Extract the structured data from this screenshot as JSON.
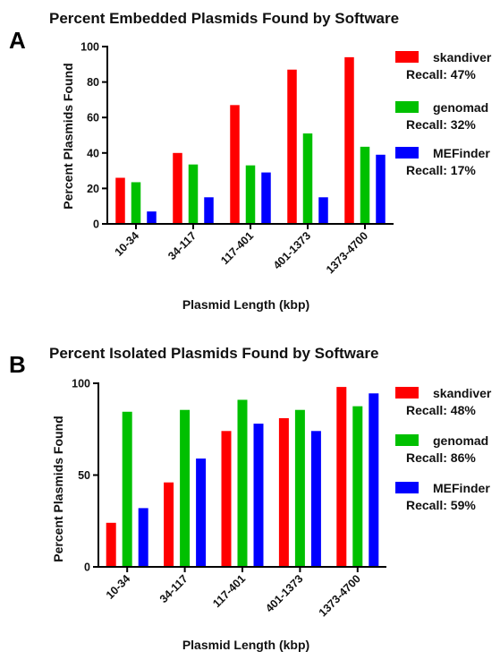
{
  "colors": {
    "skandiver": "#ff0000",
    "genomad": "#00c000",
    "MEFinder": "#0000ff"
  },
  "chart_data": [
    {
      "panel": "A",
      "type": "bar",
      "title": "Percent Embedded Plasmids Found by Software",
      "xlabel": "Plasmid Length (kbp)",
      "ylabel": "Percent Plasmids Found",
      "ylim": [
        0,
        100
      ],
      "yticks": [
        "0",
        "20",
        "40",
        "60",
        "80",
        "100"
      ],
      "categories": [
        "10-34",
        "34-117",
        "117-401",
        "401-1373",
        "1373-4700"
      ],
      "series": [
        {
          "name": "skandiver",
          "recall": "Recall: 47%",
          "values": [
            26,
            40,
            67,
            87,
            94
          ]
        },
        {
          "name": "genomad",
          "recall": "Recall: 32%",
          "values": [
            23.5,
            33.5,
            33,
            51,
            43.5
          ]
        },
        {
          "name": "MEFinder",
          "recall": "Recall: 17%",
          "values": [
            7,
            15,
            29,
            15,
            39
          ]
        }
      ],
      "legend": "right",
      "grid": false
    },
    {
      "panel": "B",
      "type": "bar",
      "title": "Percent Isolated Plasmids Found by Software",
      "xlabel": "Plasmid Length (kbp)",
      "ylabel": "Percent Plasmids Found",
      "ylim": [
        0,
        100
      ],
      "yticks": [
        "0",
        "50",
        "100"
      ],
      "categories": [
        "10-34",
        "34-117",
        "117-401",
        "401-1373",
        "1373-4700"
      ],
      "series": [
        {
          "name": "skandiver",
          "recall": "Recall: 48%",
          "values": [
            24,
            46,
            74,
            81,
            98
          ]
        },
        {
          "name": "genomad",
          "recall": "Recall: 86%",
          "values": [
            84.5,
            85.5,
            91,
            85.5,
            87.5
          ]
        },
        {
          "name": "MEFinder",
          "recall": "Recall: 59%",
          "values": [
            32,
            59,
            78,
            74,
            94.5
          ]
        }
      ],
      "legend": "right",
      "grid": false
    }
  ]
}
